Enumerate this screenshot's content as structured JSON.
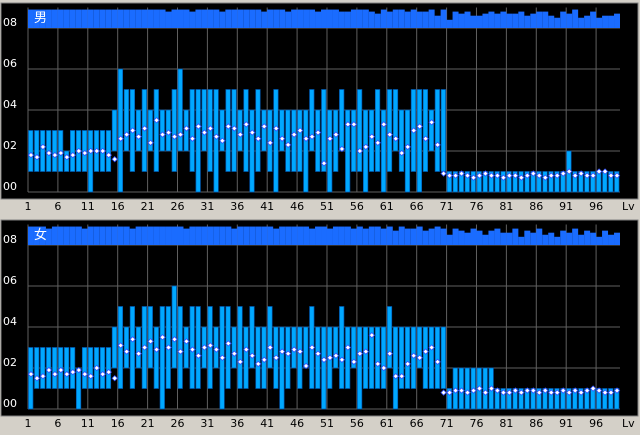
{
  "chart_data": [
    {
      "type": "range",
      "title": "男",
      "xlabel": "Lv",
      "xlim": [
        1,
        100
      ],
      "ylim": [
        0,
        9
      ],
      "xticks": [
        1,
        6,
        11,
        16,
        21,
        26,
        31,
        36,
        41,
        46,
        51,
        56,
        61,
        66,
        71,
        76,
        81,
        86,
        91,
        96
      ],
      "yticks": [
        {
          "value": 0,
          "label": "00"
        },
        {
          "value": 2,
          "label": "02"
        },
        {
          "value": 4,
          "label": "04"
        },
        {
          "value": 6,
          "label": "06"
        },
        {
          "value": 8,
          "label": "08"
        }
      ],
      "grid": true,
      "color": "#00a8ff",
      "count_color": "#1a6cff",
      "x": [
        1,
        2,
        3,
        4,
        5,
        6,
        7,
        8,
        9,
        10,
        11,
        12,
        13,
        14,
        15,
        16,
        17,
        18,
        19,
        20,
        21,
        22,
        23,
        24,
        25,
        26,
        27,
        28,
        29,
        30,
        31,
        32,
        33,
        34,
        35,
        36,
        37,
        38,
        39,
        40,
        41,
        42,
        43,
        44,
        45,
        46,
        47,
        48,
        49,
        50,
        51,
        52,
        53,
        54,
        55,
        56,
        57,
        58,
        59,
        60,
        61,
        62,
        63,
        64,
        65,
        66,
        67,
        68,
        69,
        70,
        71,
        72,
        73,
        74,
        75,
        76,
        77,
        78,
        79,
        80,
        81,
        82,
        83,
        84,
        85,
        86,
        87,
        88,
        89,
        90,
        91,
        92,
        93,
        94,
        95,
        96,
        97,
        98,
        99
      ],
      "high": [
        3,
        3,
        3,
        3,
        3,
        3,
        2,
        3,
        3,
        3,
        3,
        3,
        3,
        3,
        4,
        6,
        5,
        5,
        4,
        5,
        4,
        5,
        4,
        4,
        5,
        6,
        4,
        5,
        5,
        5,
        5,
        5,
        4,
        5,
        5,
        4,
        5,
        4,
        5,
        4,
        4,
        5,
        4,
        4,
        4,
        4,
        4,
        5,
        4,
        5,
        4,
        4,
        5,
        4,
        4,
        5,
        4,
        4,
        5,
        4,
        5,
        5,
        4,
        4,
        5,
        5,
        5,
        4,
        5,
        5,
        1,
        1,
        1,
        1,
        1,
        1,
        1,
        1,
        1,
        1,
        1,
        1,
        1,
        1,
        1,
        1,
        1,
        1,
        1,
        1,
        2,
        1,
        1,
        1,
        1,
        1,
        1,
        1,
        1
      ],
      "low": [
        1,
        1,
        1,
        1,
        1,
        1,
        1,
        1,
        1,
        1,
        0,
        1,
        1,
        1,
        2,
        0,
        2,
        1,
        2,
        1,
        2,
        1,
        2,
        2,
        1,
        2,
        2,
        1,
        0,
        2,
        1,
        0,
        2,
        1,
        1,
        2,
        1,
        0,
        1,
        2,
        1,
        0,
        2,
        1,
        1,
        1,
        0,
        2,
        1,
        1,
        0,
        1,
        2,
        0,
        1,
        1,
        0,
        1,
        1,
        0,
        1,
        2,
        1,
        0,
        1,
        0,
        1,
        2,
        1,
        1,
        0,
        0,
        0,
        0,
        0,
        0,
        0,
        0,
        0,
        0,
        0,
        0,
        0,
        0,
        0,
        0,
        0,
        0,
        0,
        0,
        0,
        0,
        0,
        0,
        0,
        0,
        0,
        0,
        0
      ],
      "values": [
        1.8,
        1.7,
        2.2,
        1.9,
        1.8,
        1.9,
        1.7,
        1.8,
        2,
        1.9,
        2,
        2,
        2,
        1.8,
        1.6,
        2.6,
        2.8,
        3,
        2.7,
        3.1,
        2.4,
        3.5,
        2.8,
        2.9,
        2.7,
        2.8,
        3.1,
        2.6,
        3.2,
        2.9,
        3.1,
        2.7,
        2.5,
        3.2,
        3.1,
        2.8,
        3.3,
        2.9,
        2.6,
        3.2,
        2.4,
        3.1,
        2.6,
        2.3,
        2.8,
        3,
        2.6,
        2.7,
        2.9,
        1.4,
        2.6,
        2.8,
        2.1,
        3.3,
        3.3,
        2,
        2.2,
        2.7,
        2.4,
        3.3,
        2.8,
        2.6,
        1.9,
        2.2,
        3,
        3.2,
        2.6,
        3.4,
        2.3,
        0.9,
        0.8,
        0.8,
        0.9,
        0.8,
        0.7,
        0.8,
        0.9,
        0.8,
        0.8,
        0.7,
        0.8,
        0.8,
        0.7,
        0.8,
        0.9,
        0.8,
        0.7,
        0.8,
        0.8,
        0.9,
        1,
        0.8,
        0.9,
        0.8,
        0.8,
        1,
        1,
        0.8,
        0.8
      ],
      "count": [
        8.9,
        8.9,
        8.9,
        8.9,
        8.9,
        8.9,
        8.9,
        8.9,
        8.9,
        8.9,
        8.9,
        8.9,
        8.9,
        8.9,
        8.9,
        8.9,
        8.9,
        8.9,
        8.9,
        8.9,
        8.9,
        8.9,
        8.9,
        8.8,
        8.9,
        8.9,
        8.9,
        8.8,
        8.9,
        8.9,
        8.9,
        8.9,
        8.8,
        8.9,
        8.9,
        8.9,
        8.9,
        8.9,
        8.9,
        8.8,
        8.9,
        8.9,
        8.9,
        8.8,
        8.9,
        8.9,
        8.9,
        8.9,
        8.8,
        8.9,
        8.9,
        8.9,
        8.8,
        8.8,
        8.9,
        8.9,
        8.9,
        8.8,
        8.7,
        8.9,
        8.8,
        8.9,
        8.9,
        8.8,
        8.9,
        8.8,
        8.8,
        8.9,
        8.6,
        8.9,
        8.4,
        8.8,
        8.7,
        8.8,
        8.6,
        8.6,
        8.7,
        8.8,
        8.7,
        8.8,
        8.7,
        8.7,
        8.8,
        8.6,
        8.7,
        8.8,
        8.8,
        8.6,
        8.5,
        8.8,
        8.7,
        8.9,
        8.5,
        8.6,
        8.8,
        8.5,
        8.6,
        8.6,
        8.7
      ]
    },
    {
      "type": "range",
      "title": "女",
      "xlabel": "Lv",
      "xlim": [
        1,
        100
      ],
      "ylim": [
        0,
        9
      ],
      "xticks": [
        1,
        6,
        11,
        16,
        21,
        26,
        31,
        36,
        41,
        46,
        51,
        56,
        61,
        66,
        71,
        76,
        81,
        86,
        91,
        96
      ],
      "yticks": [
        {
          "value": 0,
          "label": "00"
        },
        {
          "value": 2,
          "label": "02"
        },
        {
          "value": 4,
          "label": "04"
        },
        {
          "value": 6,
          "label": "06"
        },
        {
          "value": 8,
          "label": "08"
        }
      ],
      "grid": true,
      "color": "#00a8ff",
      "count_color": "#1a6cff",
      "x": [
        1,
        2,
        3,
        4,
        5,
        6,
        7,
        8,
        9,
        10,
        11,
        12,
        13,
        14,
        15,
        16,
        17,
        18,
        19,
        20,
        21,
        22,
        23,
        24,
        25,
        26,
        27,
        28,
        29,
        30,
        31,
        32,
        33,
        34,
        35,
        36,
        37,
        38,
        39,
        40,
        41,
        42,
        43,
        44,
        45,
        46,
        47,
        48,
        49,
        50,
        51,
        52,
        53,
        54,
        55,
        56,
        57,
        58,
        59,
        60,
        61,
        62,
        63,
        64,
        65,
        66,
        67,
        68,
        69,
        70,
        71,
        72,
        73,
        74,
        75,
        76,
        77,
        78,
        79,
        80,
        81,
        82,
        83,
        84,
        85,
        86,
        87,
        88,
        89,
        90,
        91,
        92,
        93,
        94,
        95,
        96,
        97,
        98,
        99
      ],
      "high": [
        3,
        3,
        3,
        3,
        3,
        3,
        3,
        3,
        2,
        3,
        3,
        3,
        3,
        3,
        4,
        5,
        4,
        5,
        4,
        5,
        5,
        4,
        5,
        5,
        6,
        5,
        4,
        5,
        5,
        4,
        5,
        4,
        5,
        5,
        4,
        5,
        4,
        5,
        4,
        4,
        5,
        4,
        4,
        4,
        4,
        4,
        4,
        5,
        4,
        4,
        4,
        4,
        5,
        4,
        4,
        4,
        4,
        4,
        4,
        4,
        5,
        4,
        4,
        4,
        4,
        4,
        4,
        4,
        4,
        4,
        1,
        2,
        2,
        2,
        2,
        2,
        2,
        2,
        1,
        1,
        1,
        1,
        1,
        1,
        1,
        1,
        1,
        1,
        1,
        1,
        1,
        1,
        1,
        1,
        1,
        1,
        1,
        1,
        1
      ],
      "low": [
        0,
        1,
        1,
        1,
        1,
        1,
        1,
        1,
        0,
        1,
        1,
        1,
        1,
        1,
        2,
        1,
        2,
        1,
        2,
        1,
        2,
        1,
        0,
        1,
        2,
        1,
        2,
        1,
        1,
        2,
        1,
        2,
        0,
        1,
        2,
        1,
        1,
        2,
        1,
        1,
        2,
        1,
        0,
        1,
        2,
        1,
        2,
        1,
        1,
        0,
        1,
        2,
        1,
        1,
        2,
        0,
        1,
        1,
        1,
        1,
        2,
        0,
        1,
        1,
        1,
        2,
        1,
        1,
        1,
        1,
        0,
        0,
        0,
        0,
        0,
        0,
        0,
        0,
        0,
        0,
        0,
        0,
        0,
        0,
        0,
        0,
        0,
        0,
        0,
        0,
        0,
        0,
        0,
        0,
        0,
        0,
        0,
        0,
        0
      ],
      "values": [
        1.7,
        1.5,
        1.6,
        1.9,
        1.7,
        1.9,
        1.7,
        1.8,
        1.9,
        1.7,
        1.6,
        2,
        1.7,
        1.8,
        1.5,
        3.1,
        2.8,
        3.4,
        2.7,
        3,
        3.3,
        2.9,
        3.5,
        3,
        3.4,
        2.8,
        3.3,
        2.9,
        2.6,
        3,
        3.1,
        2.9,
        2.5,
        3.2,
        2.7,
        2.3,
        2.9,
        2.6,
        2.2,
        2.4,
        3,
        2.5,
        2.8,
        2.7,
        2.9,
        2.8,
        2.1,
        3,
        2.7,
        2.4,
        2.5,
        2.6,
        2.4,
        3,
        2.3,
        2.7,
        2.8,
        3.6,
        2.2,
        2,
        2.7,
        1.6,
        1.6,
        2.2,
        2.6,
        2.5,
        2.8,
        3,
        2.3,
        0.8,
        0.8,
        0.9,
        0.9,
        0.8,
        0.9,
        1,
        0.8,
        1,
        0.9,
        0.8,
        0.8,
        0.9,
        0.8,
        0.9,
        0.9,
        0.8,
        0.9,
        0.8,
        0.8,
        0.9,
        0.8,
        0.9,
        0.8,
        0.9,
        1,
        0.9,
        0.8,
        0.8,
        0.9
      ],
      "count": [
        8.9,
        8.9,
        8.9,
        8.8,
        8.9,
        8.9,
        8.9,
        8.9,
        8.9,
        8.8,
        8.9,
        8.9,
        8.9,
        8.9,
        8.9,
        8.9,
        8.9,
        8.8,
        8.9,
        8.9,
        8.9,
        8.9,
        8.9,
        8.9,
        8.9,
        8.9,
        8.8,
        8.9,
        8.9,
        8.9,
        8.9,
        8.9,
        8.9,
        8.9,
        8.8,
        8.9,
        8.9,
        8.9,
        8.9,
        8.9,
        8.9,
        8.8,
        8.9,
        8.9,
        8.9,
        8.9,
        8.9,
        8.8,
        8.9,
        8.9,
        8.8,
        8.9,
        8.9,
        8.9,
        8.8,
        8.9,
        8.8,
        8.9,
        8.9,
        8.8,
        8.9,
        8.7,
        8.9,
        8.8,
        8.8,
        8.9,
        8.7,
        8.8,
        8.9,
        8.8,
        8.5,
        8.8,
        8.7,
        8.6,
        8.8,
        8.7,
        8.5,
        8.7,
        8.8,
        8.6,
        8.6,
        8.8,
        8.4,
        8.7,
        8.6,
        8.8,
        8.5,
        8.6,
        8.4,
        8.7,
        8.6,
        8.8,
        8.5,
        8.7,
        8.6,
        8.4,
        8.7,
        8.5,
        8.6
      ]
    }
  ]
}
